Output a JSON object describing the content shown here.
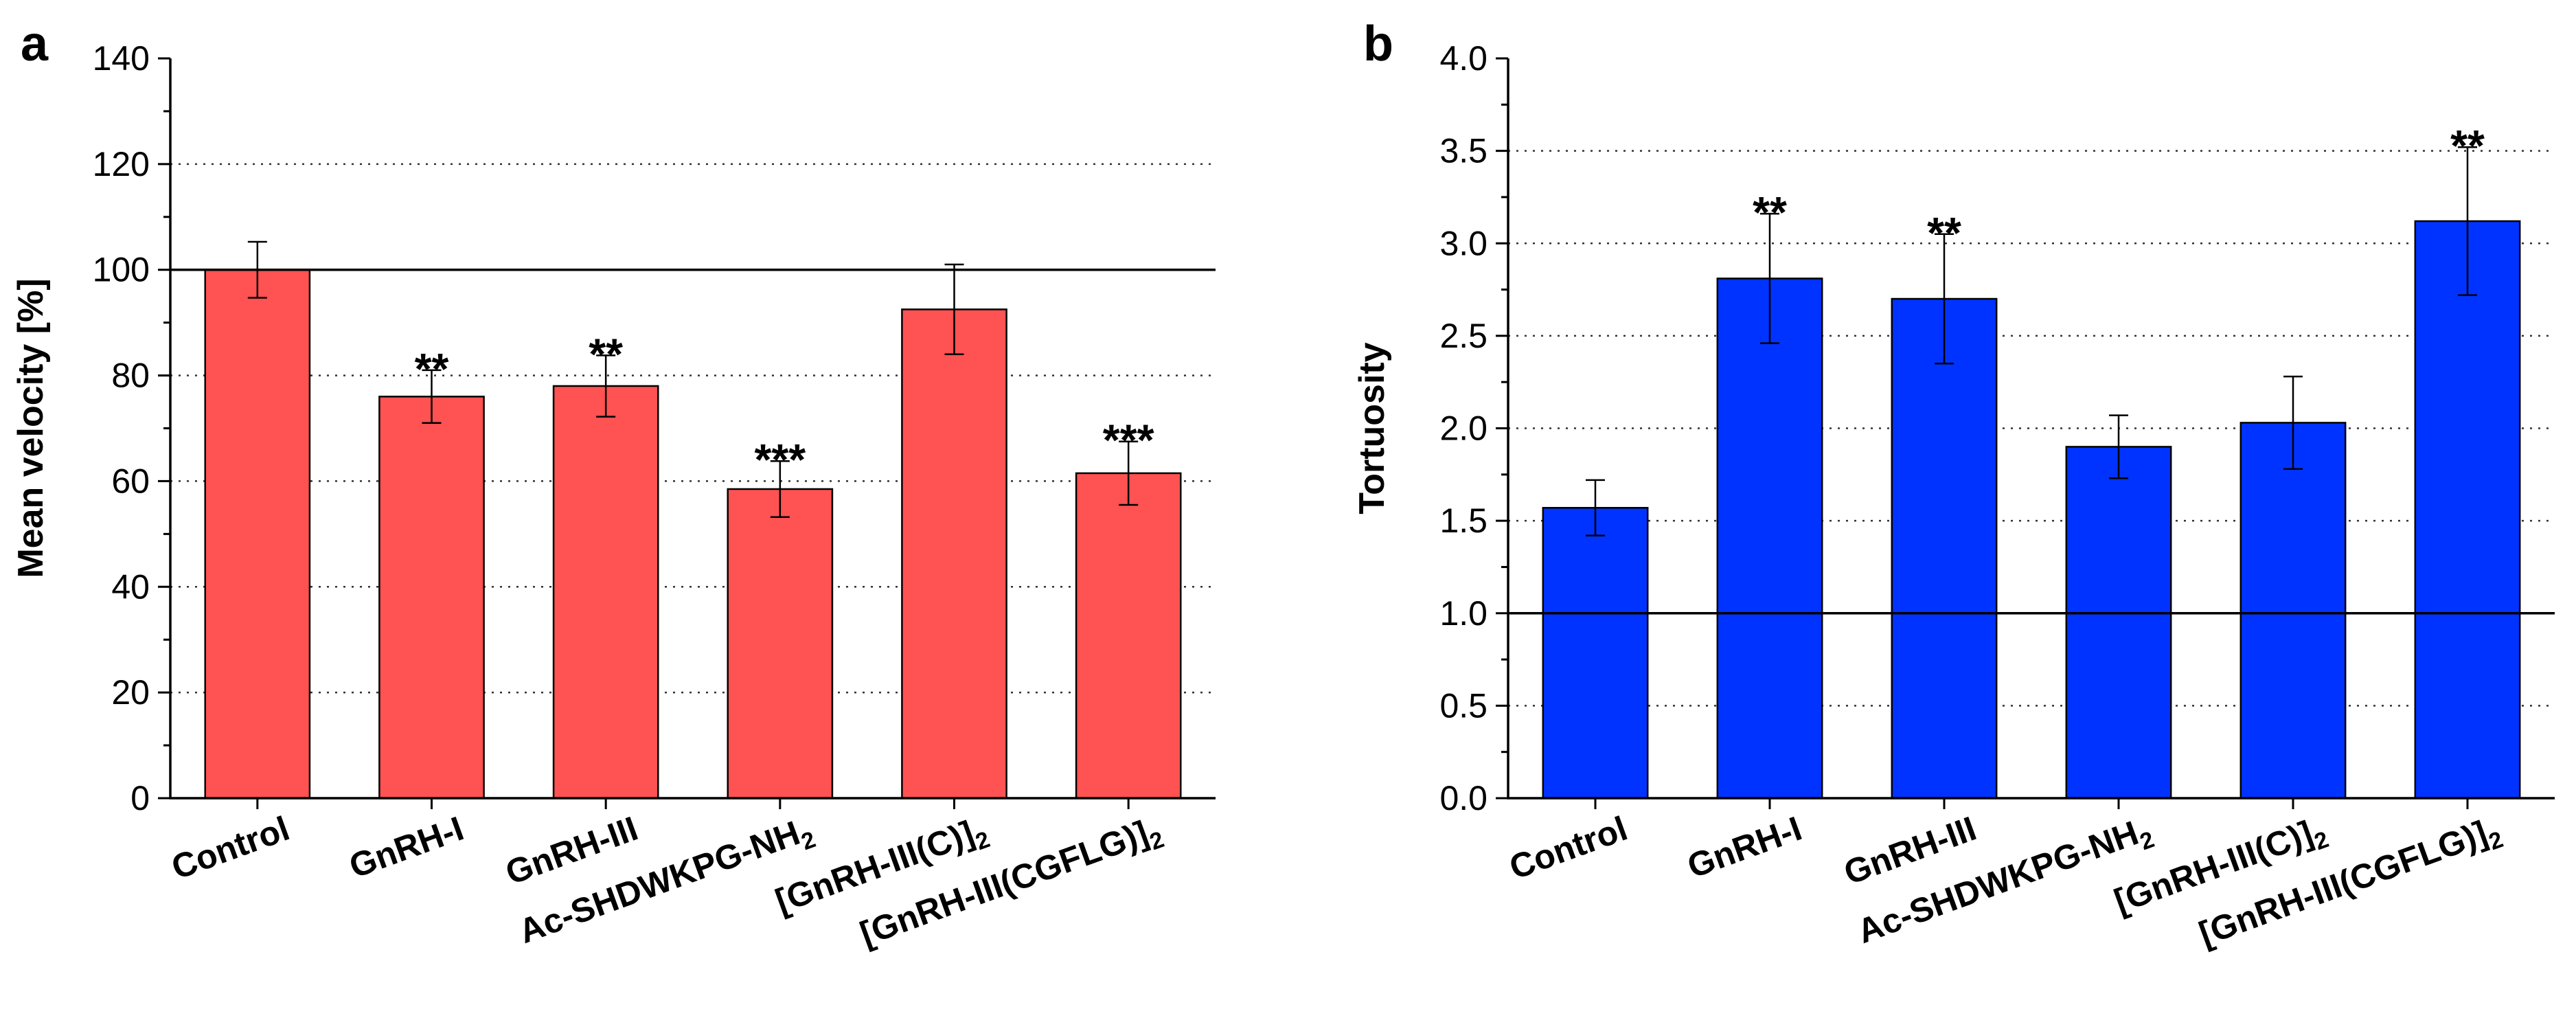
{
  "chart_data": [
    {
      "panel": "a",
      "type": "bar",
      "categories": [
        "Control",
        "GnRH-I",
        "GnRH-III",
        "Ac-SHDWKPG-NH2",
        "[GnRH-III(C)]2",
        "[GnRH-III(CGFLG)]2"
      ],
      "category_labels": [
        {
          "main": "Control",
          "sub": ""
        },
        {
          "main": "GnRH-I",
          "sub": ""
        },
        {
          "main": "GnRH-III",
          "sub": ""
        },
        {
          "main": "Ac-SHDWKPG-NH",
          "sub": "2"
        },
        {
          "main": "[GnRH-III(C)]",
          "sub": "2"
        },
        {
          "main": "[GnRH-III(CGFLG)]",
          "sub": "2"
        }
      ],
      "values": [
        100,
        76,
        78,
        58.5,
        92.5,
        61.5
      ],
      "errors": [
        5.3,
        5,
        5.8,
        5.3,
        8.5,
        6
      ],
      "significance": [
        "",
        "**",
        "**",
        "***",
        "",
        "***"
      ],
      "ylabel": "Mean velocity [%]",
      "xlabel": "",
      "ylim": [
        0,
        140
      ],
      "yticks": [
        0,
        20,
        40,
        60,
        80,
        100,
        120,
        140
      ],
      "ytick_labels": [
        "0",
        "20",
        "40",
        "60",
        "80",
        "100",
        "120",
        "140"
      ],
      "reference_line": 100,
      "dotted_gridlines": [
        20,
        40,
        60,
        80,
        120
      ],
      "bar_color": "#ff5252"
    },
    {
      "panel": "b",
      "type": "bar",
      "categories": [
        "Control",
        "GnRH-I",
        "GnRH-III",
        "Ac-SHDWKPG-NH2",
        "[GnRH-III(C)]2",
        "[GnRH-III(CGFLG)]2"
      ],
      "category_labels": [
        {
          "main": "Control",
          "sub": ""
        },
        {
          "main": "GnRH-I",
          "sub": ""
        },
        {
          "main": "GnRH-III",
          "sub": ""
        },
        {
          "main": "Ac-SHDWKPG-NH",
          "sub": "2"
        },
        {
          "main": "[GnRH-III(C)]",
          "sub": "2"
        },
        {
          "main": "[GnRH-III(CGFLG)]",
          "sub": "2"
        }
      ],
      "values": [
        1.57,
        2.81,
        2.7,
        1.9,
        2.03,
        3.12
      ],
      "errors": [
        0.15,
        0.35,
        0.35,
        0.17,
        0.25,
        0.4
      ],
      "significance": [
        "",
        "**",
        "**",
        "",
        "",
        "**"
      ],
      "ylabel": "Tortuosity",
      "xlabel": "",
      "ylim": [
        0,
        4
      ],
      "yticks": [
        0,
        0.5,
        1,
        1.5,
        2,
        2.5,
        3,
        3.5,
        4
      ],
      "ytick_labels": [
        "0.0",
        "0.5",
        "1.0",
        "1.5",
        "2.0",
        "2.5",
        "3.0",
        "3.5",
        "4.0"
      ],
      "reference_line": 1,
      "dotted_gridlines": [
        0.5,
        1.5,
        2,
        2.5,
        3,
        3.5
      ],
      "bar_color": "#0033ff"
    }
  ]
}
